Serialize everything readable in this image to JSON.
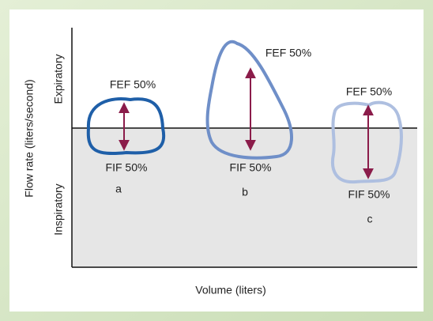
{
  "axes": {
    "y_label": "Flow rate (liters/second)",
    "x_label": "Volume (liters)",
    "upper_region": "Expiratory",
    "lower_region": "Inspiratory"
  },
  "loops": [
    {
      "label": "a",
      "fef": "FEF 50%",
      "fif": "FIF 50%"
    },
    {
      "label": "b",
      "fef": "FEF 50%",
      "fif": "FIF 50%"
    },
    {
      "label": "c",
      "fef": "FEF 50%",
      "fif": "FIF 50%"
    }
  ]
}
